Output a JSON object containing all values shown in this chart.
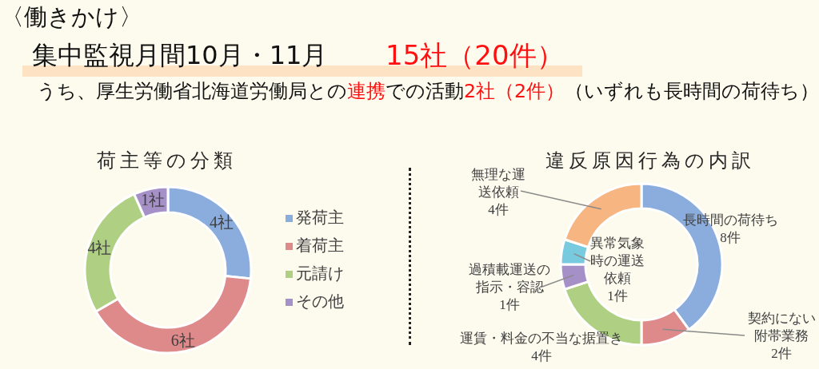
{
  "chart_data": [
    {
      "type": "other",
      "title": "〈働きかけ〉",
      "annotations": [
        "集中監視月間10月・11月",
        "15社（20件）",
        "うち、厚生労働省北海道労働局との",
        "連携",
        "での活動",
        "2社（2件）",
        "（いずれも長時間の荷待ち）"
      ]
    },
    {
      "type": "donut",
      "title": "荷主等の分類",
      "categories": [
        "発荷主",
        "着荷主",
        "元請け",
        "その他"
      ],
      "values": [
        4,
        6,
        4,
        1
      ],
      "colors": [
        "#8badde",
        "#df8a8a",
        "#afcf83",
        "#a690c8"
      ],
      "value_labels": [
        "4社",
        "6社",
        "4社",
        "1社"
      ],
      "legend": "right"
    },
    {
      "type": "donut",
      "title": "違反原因行為の内訳",
      "categories": [
        "長時間の荷待ち",
        "契約にない附帯業務",
        "運賃・料金の不当な据置き",
        "過積載運送の指示・容認",
        "異常気象時の運送依頼",
        "無理な運送依頼"
      ],
      "values": [
        8,
        2,
        4,
        1,
        1,
        4
      ],
      "colors": [
        "#8badde",
        "#df8a8a",
        "#afcf83",
        "#a690c8",
        "#78cadf",
        "#f6b581"
      ],
      "value_labels": [
        "8件",
        "2件",
        "4件",
        "1件",
        "1件",
        "4件"
      ]
    }
  ]
}
